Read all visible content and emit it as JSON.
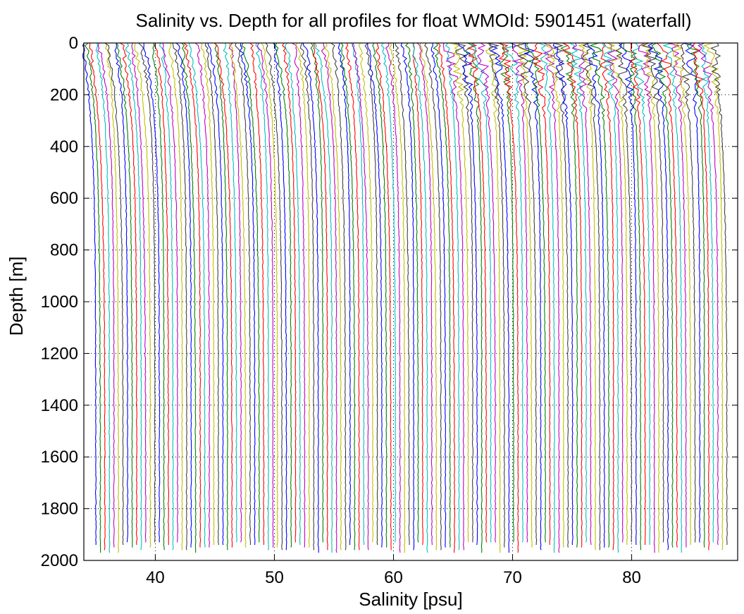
{
  "chart_data": {
    "type": "line",
    "title": "Salinity vs. Depth for all profiles for float WMOId: 5901451 (waterfall)",
    "xlabel": "Salinity [psu]",
    "ylabel": "Depth [m]",
    "xlim": [
      34,
      88.9
    ],
    "ylim": [
      0,
      2000
    ],
    "y_reversed": true,
    "x_ticks": [
      40,
      50,
      60,
      70,
      80
    ],
    "y_ticks": [
      0,
      200,
      400,
      600,
      800,
      1000,
      1200,
      1400,
      1600,
      1800,
      2000
    ],
    "grid": "dotted",
    "legend": "none",
    "waterfall": {
      "profile_count": 140,
      "first_deep_salinity": 35.0,
      "last_deep_salinity": 88.0,
      "profile_offset_psu": 0.38,
      "max_depth": 1970
    },
    "series_colors": [
      "#0000ff",
      "#008000",
      "#ff0000",
      "#00bfbf",
      "#bf00bf",
      "#bfbf00",
      "#404040"
    ]
  }
}
